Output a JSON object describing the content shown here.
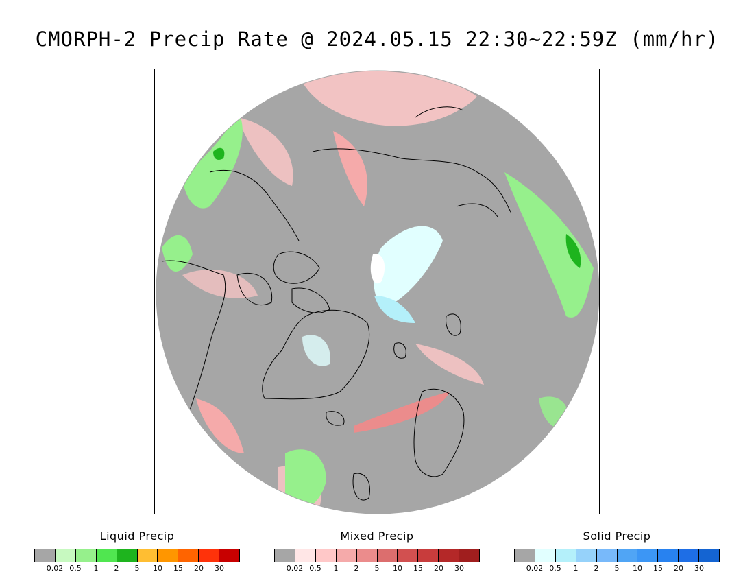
{
  "title": "CMORPH-2 Precip Rate @ 2024.05.15 22:30~22:59Z (mm/hr)",
  "map": {
    "projection": "north-polar-stereographic",
    "no_precip_color": "#a6a6a6",
    "outside_color": "#ffffff",
    "coastline_color": "#000000"
  },
  "legends": [
    {
      "title": "Liquid Precip",
      "colors": [
        "#a6a6a6",
        "#c7f9c0",
        "#96f08c",
        "#50e650",
        "#1eb41e",
        "#ffbe32",
        "#ff9600",
        "#ff6400",
        "#ff320a",
        "#c80000"
      ],
      "ticks": [
        "0.02",
        "0.5",
        "1",
        "2",
        "5",
        "10",
        "15",
        "20",
        "30"
      ]
    },
    {
      "title": "Mixed Precip",
      "colors": [
        "#a6a6a6",
        "#ffe6e6",
        "#ffc8c8",
        "#f5aaaa",
        "#eb8c8c",
        "#dc6e6e",
        "#d25050",
        "#c83c3c",
        "#b42828",
        "#a01e1e"
      ],
      "ticks": [
        "0.02",
        "0.5",
        "1",
        "2",
        "5",
        "10",
        "15",
        "20",
        "30"
      ]
    },
    {
      "title": "Solid Precip",
      "colors": [
        "#a6a6a6",
        "#e1ffff",
        "#b4f0fa",
        "#96d2fa",
        "#78b9fa",
        "#50a5f5",
        "#3c96f5",
        "#2882f0",
        "#1e6ee6",
        "#1464d2"
      ],
      "ticks": [
        "0.02",
        "0.5",
        "1",
        "2",
        "5",
        "10",
        "15",
        "20",
        "30"
      ]
    }
  ]
}
